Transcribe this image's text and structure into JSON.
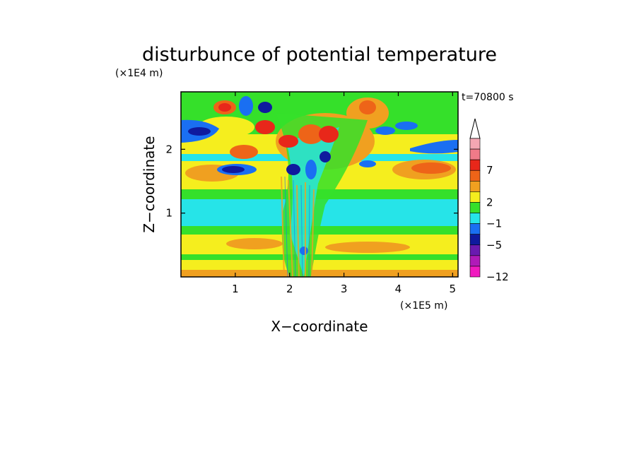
{
  "chart_data": {
    "type": "heatmap",
    "title": "disturbunce of potential temperature",
    "time_label": "t=70800 s",
    "xlabel": "X−coordinate",
    "ylabel": "Z−coordinate",
    "x_unit": "(×1E5 m)",
    "y_unit": "(×1E4 m)",
    "xlim": [
      0,
      5.1
    ],
    "ylim": [
      0,
      2.9
    ],
    "x_ticks": [
      "1",
      "2",
      "3",
      "4",
      "5"
    ],
    "y_ticks": [
      "1",
      "2"
    ],
    "colorbar": {
      "labels": [
        "7",
        "2",
        "−1",
        "−5",
        "−12"
      ],
      "colors": [
        "#ffffff",
        "#f4a6b3",
        "#f07a88",
        "#e8271a",
        "#ee6418",
        "#f0a020",
        "#f5ee1e",
        "#35e02a",
        "#26e4e8",
        "#1a6ff2",
        "#0f1a9e",
        "#6a1ab0",
        "#b01ab8",
        "#f01ac0"
      ]
    }
  }
}
